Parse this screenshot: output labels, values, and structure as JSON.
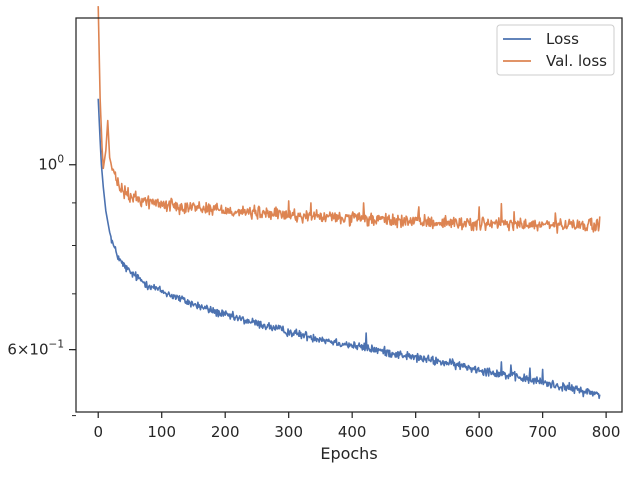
{
  "chart_data": {
    "type": "line",
    "title": "",
    "xlabel": "Epochs",
    "ylabel": "",
    "xlim": [
      -35,
      825
    ],
    "ylim": [
      0.505,
      1.5
    ],
    "yscale": "log",
    "grid": false,
    "legend_position": "top-right",
    "x_ticks": [
      0,
      100,
      200,
      300,
      400,
      500,
      600,
      700,
      800
    ],
    "y_ticks": [
      {
        "value": 1.0,
        "base": "10",
        "exponent": "0",
        "coef": ""
      },
      {
        "value": 0.6,
        "base": "10",
        "exponent": "−1",
        "coef": "6×"
      }
    ],
    "y_minor_ticks": [
      0.9,
      0.8,
      0.7,
      0.6,
      0.5
    ],
    "series": [
      {
        "name": "Loss",
        "color": "#4c72b0",
        "anchors": [
          [
            0,
            1.2
          ],
          [
            3,
            1.07
          ],
          [
            5,
            1.0
          ],
          [
            8,
            0.94
          ],
          [
            12,
            0.88
          ],
          [
            18,
            0.83
          ],
          [
            25,
            0.795
          ],
          [
            35,
            0.765
          ],
          [
            50,
            0.743
          ],
          [
            75,
            0.72
          ],
          [
            100,
            0.705
          ],
          [
            150,
            0.68
          ],
          [
            200,
            0.66
          ],
          [
            250,
            0.645
          ],
          [
            300,
            0.63
          ],
          [
            350,
            0.618
          ],
          [
            400,
            0.607
          ],
          [
            450,
            0.597
          ],
          [
            500,
            0.587
          ],
          [
            550,
            0.578
          ],
          [
            600,
            0.568
          ],
          [
            650,
            0.558
          ],
          [
            700,
            0.548
          ],
          [
            750,
            0.538
          ],
          [
            790,
            0.53
          ]
        ],
        "noise": 0.006,
        "spikes": [
          [
            349,
            0.62
          ],
          [
            422,
            0.628
          ],
          [
            635,
            0.58
          ],
          [
            650,
            0.575
          ],
          [
            680,
            0.57
          ],
          [
            700,
            0.568
          ]
        ]
      },
      {
        "name": "Val. loss",
        "color": "#dd8452",
        "anchors": [
          [
            0,
            1.55
          ],
          [
            3,
            1.2
          ],
          [
            6,
            1.05
          ],
          [
            8,
            0.99
          ],
          [
            12,
            1.04
          ],
          [
            15,
            1.13
          ],
          [
            18,
            1.02
          ],
          [
            22,
            0.99
          ],
          [
            28,
            0.96
          ],
          [
            35,
            0.935
          ],
          [
            50,
            0.915
          ],
          [
            75,
            0.905
          ],
          [
            100,
            0.897
          ],
          [
            150,
            0.89
          ],
          [
            200,
            0.882
          ],
          [
            250,
            0.875
          ],
          [
            300,
            0.87
          ],
          [
            350,
            0.866
          ],
          [
            400,
            0.862
          ],
          [
            450,
            0.858
          ],
          [
            500,
            0.855
          ],
          [
            550,
            0.852
          ],
          [
            600,
            0.85
          ],
          [
            650,
            0.848
          ],
          [
            700,
            0.846
          ],
          [
            750,
            0.845
          ],
          [
            790,
            0.846
          ]
        ],
        "noise": 0.009,
        "spikes": [
          [
            300,
            0.905
          ],
          [
            335,
            0.9
          ],
          [
            418,
            0.9
          ],
          [
            505,
            0.89
          ],
          [
            600,
            0.89
          ],
          [
            635,
            0.898
          ],
          [
            655,
            0.878
          ],
          [
            720,
            0.875
          ]
        ]
      }
    ]
  }
}
